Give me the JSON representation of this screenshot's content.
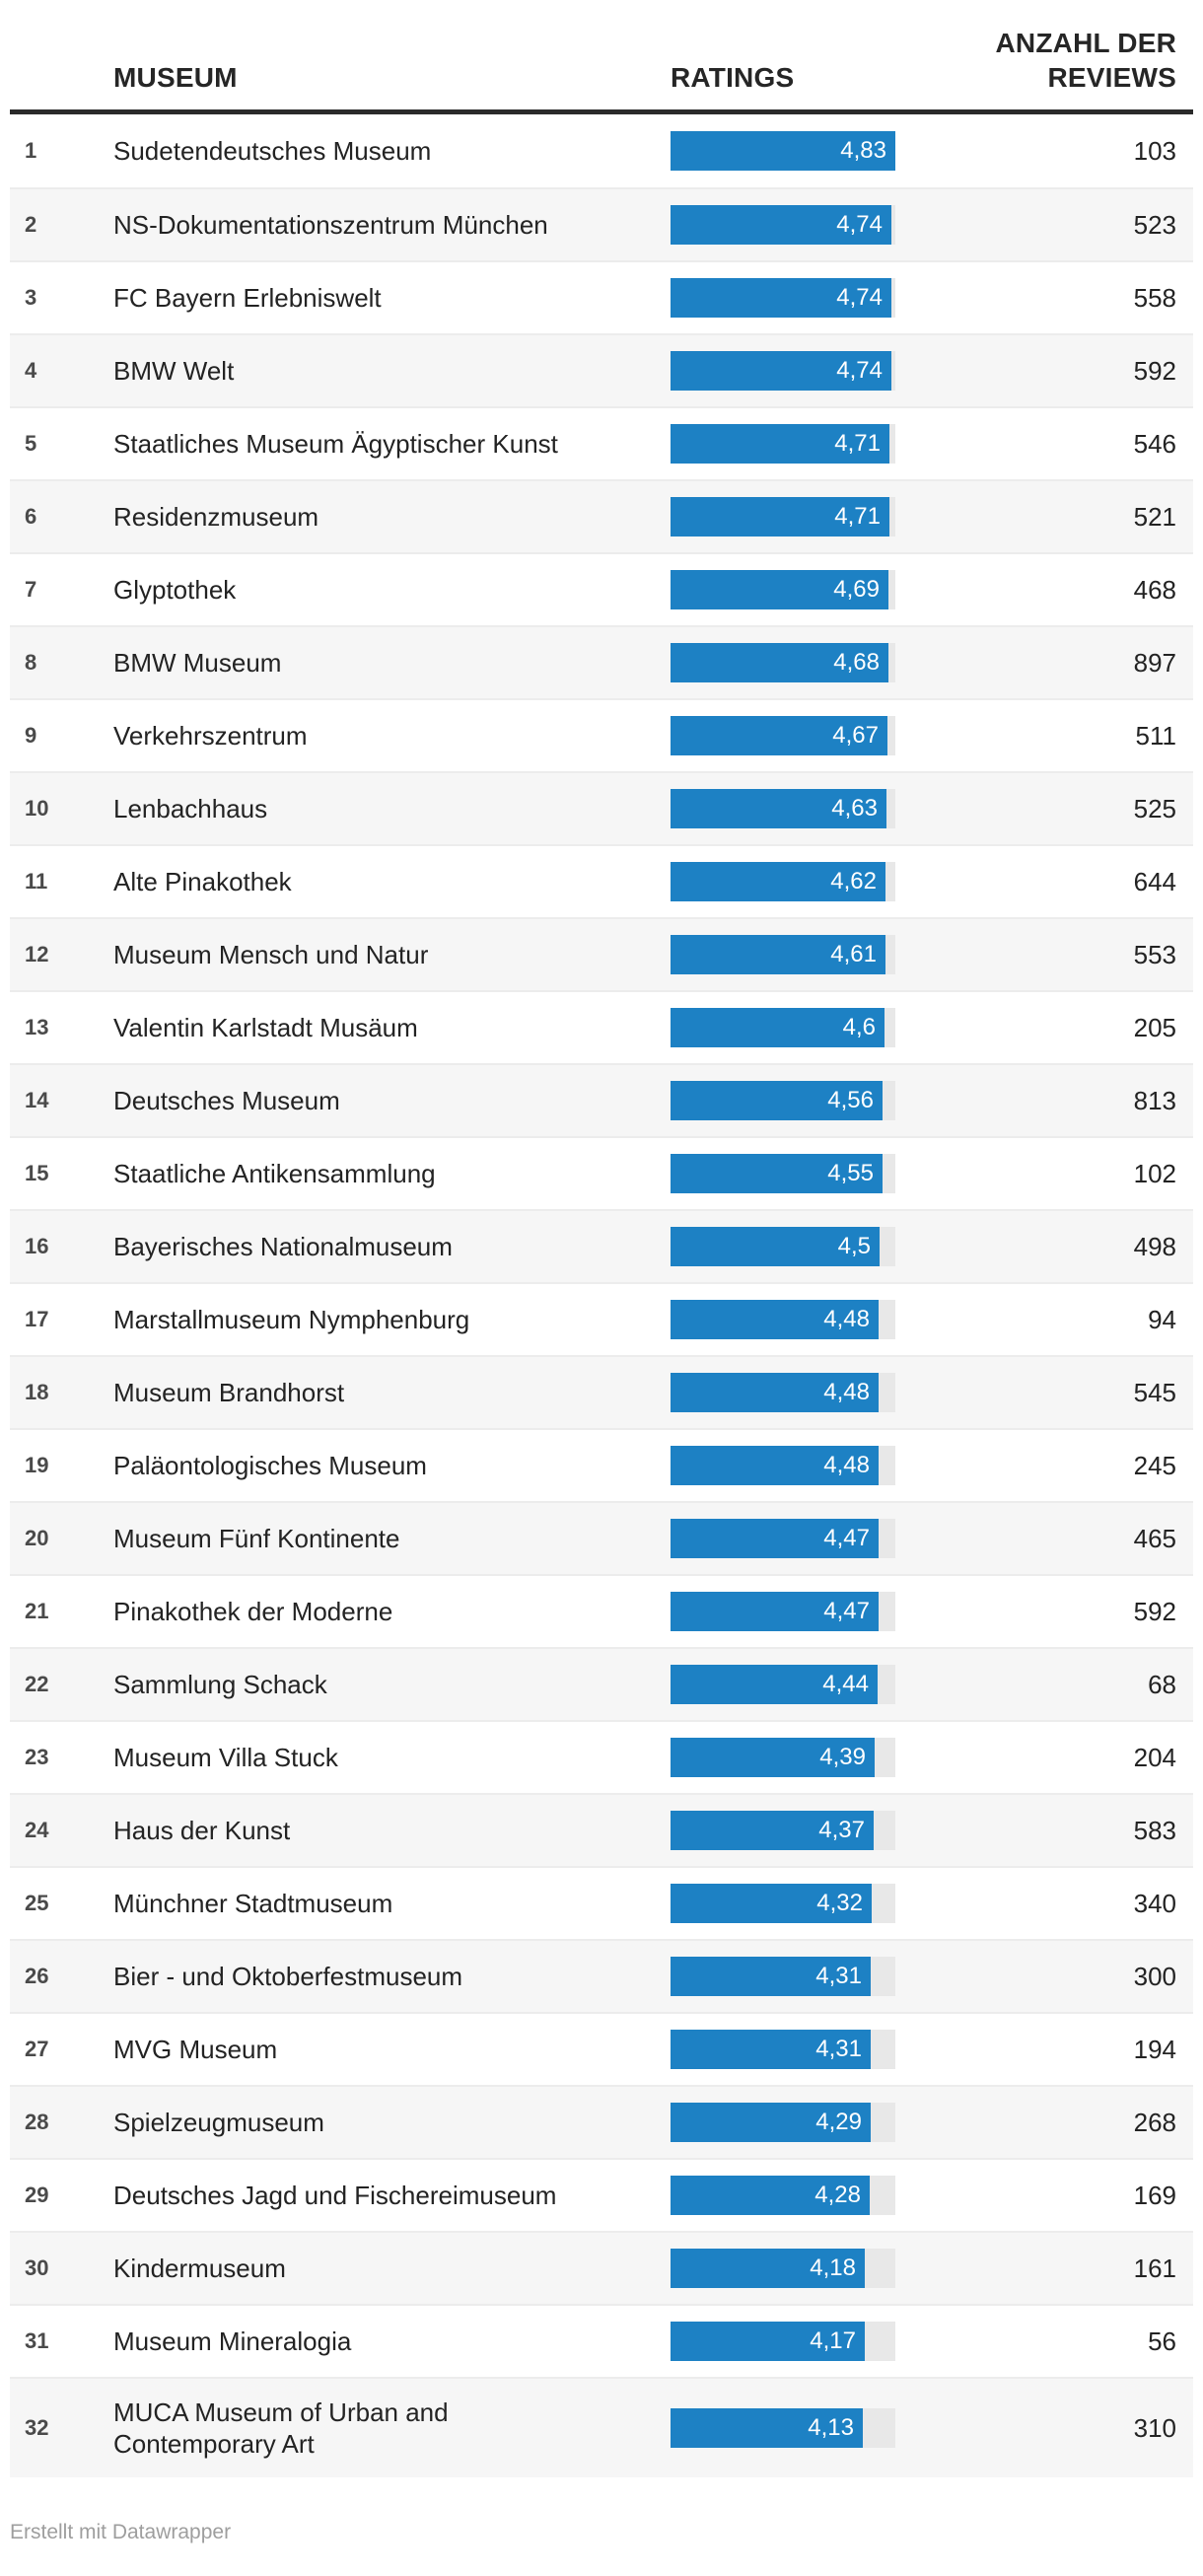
{
  "header": {
    "museum": "MUSEUM",
    "ratings": "RATINGS",
    "reviews_line1": "ANZAHL DER",
    "reviews_line2": "REVIEWS"
  },
  "footer": {
    "text": "Erstellt mit Datawrapper"
  },
  "colors": {
    "bar": "#1d81c4",
    "bar_track": "#e8e8e8",
    "row_stripe": "#f6f6f6",
    "header_rule": "#2a2a2a",
    "bar_value_text": "#ffffff"
  },
  "chart_data": {
    "type": "table",
    "columns": [
      "MUSEUM",
      "RATINGS",
      "ANZAHL DER REVIEWS"
    ],
    "bar_column": "RATINGS",
    "bar_axis_range": [
      0,
      4.83
    ],
    "rows": [
      {
        "rank": 1,
        "museum": "Sudetendeutsches Museum",
        "rating": 4.83,
        "rating_label": "4,83",
        "reviews": 103
      },
      {
        "rank": 2,
        "museum": "NS-Dokumentationszentrum München",
        "rating": 4.74,
        "rating_label": "4,74",
        "reviews": 523
      },
      {
        "rank": 3,
        "museum": "FC Bayern Erlebniswelt",
        "rating": 4.74,
        "rating_label": "4,74",
        "reviews": 558
      },
      {
        "rank": 4,
        "museum": "BMW Welt",
        "rating": 4.74,
        "rating_label": "4,74",
        "reviews": 592
      },
      {
        "rank": 5,
        "museum": "Staatliches Museum Ägyptischer Kunst",
        "rating": 4.71,
        "rating_label": "4,71",
        "reviews": 546
      },
      {
        "rank": 6,
        "museum": "Residenzmuseum",
        "rating": 4.71,
        "rating_label": "4,71",
        "reviews": 521
      },
      {
        "rank": 7,
        "museum": "Glyptothek",
        "rating": 4.69,
        "rating_label": "4,69",
        "reviews": 468
      },
      {
        "rank": 8,
        "museum": "BMW Museum",
        "rating": 4.68,
        "rating_label": "4,68",
        "reviews": 897
      },
      {
        "rank": 9,
        "museum": "Verkehrszentrum",
        "rating": 4.67,
        "rating_label": "4,67",
        "reviews": 511
      },
      {
        "rank": 10,
        "museum": "Lenbachhaus",
        "rating": 4.63,
        "rating_label": "4,63",
        "reviews": 525
      },
      {
        "rank": 11,
        "museum": "Alte Pinakothek",
        "rating": 4.62,
        "rating_label": "4,62",
        "reviews": 644
      },
      {
        "rank": 12,
        "museum": "Museum Mensch und Natur",
        "rating": 4.61,
        "rating_label": "4,61",
        "reviews": 553
      },
      {
        "rank": 13,
        "museum": "Valentin Karlstadt Musäum",
        "rating": 4.6,
        "rating_label": "4,6",
        "reviews": 205
      },
      {
        "rank": 14,
        "museum": "Deutsches Museum",
        "rating": 4.56,
        "rating_label": "4,56",
        "reviews": 813
      },
      {
        "rank": 15,
        "museum": "Staatliche Antikensammlung",
        "rating": 4.55,
        "rating_label": "4,55",
        "reviews": 102
      },
      {
        "rank": 16,
        "museum": "Bayerisches Nationalmuseum",
        "rating": 4.5,
        "rating_label": "4,5",
        "reviews": 498
      },
      {
        "rank": 17,
        "museum": "Marstallmuseum Nymphenburg",
        "rating": 4.48,
        "rating_label": "4,48",
        "reviews": 94
      },
      {
        "rank": 18,
        "museum": "Museum Brandhorst",
        "rating": 4.48,
        "rating_label": "4,48",
        "reviews": 545
      },
      {
        "rank": 19,
        "museum": "Paläontologisches Museum",
        "rating": 4.48,
        "rating_label": "4,48",
        "reviews": 245
      },
      {
        "rank": 20,
        "museum": "Museum Fünf Kontinente",
        "rating": 4.47,
        "rating_label": "4,47",
        "reviews": 465
      },
      {
        "rank": 21,
        "museum": "Pinakothek der Moderne",
        "rating": 4.47,
        "rating_label": "4,47",
        "reviews": 592
      },
      {
        "rank": 22,
        "museum": "Sammlung Schack",
        "rating": 4.44,
        "rating_label": "4,44",
        "reviews": 68
      },
      {
        "rank": 23,
        "museum": "Museum Villa Stuck",
        "rating": 4.39,
        "rating_label": "4,39",
        "reviews": 204
      },
      {
        "rank": 24,
        "museum": "Haus der Kunst",
        "rating": 4.37,
        "rating_label": "4,37",
        "reviews": 583
      },
      {
        "rank": 25,
        "museum": "Münchner Stadtmuseum",
        "rating": 4.32,
        "rating_label": "4,32",
        "reviews": 340
      },
      {
        "rank": 26,
        "museum": "Bier - und Oktoberfestmuseum",
        "rating": 4.31,
        "rating_label": "4,31",
        "reviews": 300
      },
      {
        "rank": 27,
        "museum": "MVG Museum",
        "rating": 4.31,
        "rating_label": "4,31",
        "reviews": 194
      },
      {
        "rank": 28,
        "museum": "Spielzeugmuseum",
        "rating": 4.29,
        "rating_label": "4,29",
        "reviews": 268
      },
      {
        "rank": 29,
        "museum": "Deutsches Jagd und Fischereimuseum",
        "rating": 4.28,
        "rating_label": "4,28",
        "reviews": 169
      },
      {
        "rank": 30,
        "museum": "Kindermuseum",
        "rating": 4.18,
        "rating_label": "4,18",
        "reviews": 161
      },
      {
        "rank": 31,
        "museum": "Museum Mineralogia",
        "rating": 4.17,
        "rating_label": "4,17",
        "reviews": 56
      },
      {
        "rank": 32,
        "museum": "MUCA Museum of Urban and\nContemporary Art",
        "rating": 4.13,
        "rating_label": "4,13",
        "reviews": 310,
        "tall": true
      }
    ]
  }
}
